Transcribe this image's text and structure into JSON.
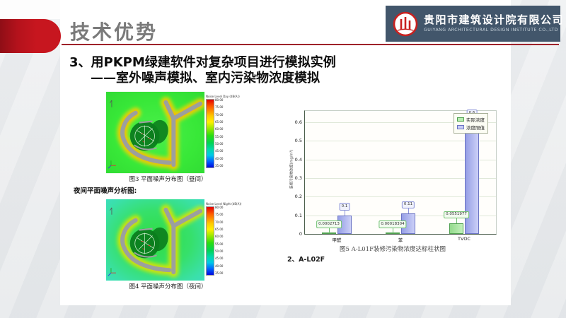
{
  "slide": {
    "page_title": "技术优势",
    "heading_line1": "3、用PKPM绿建软件对复杂项目进行模拟实例",
    "heading_line2": "——室外噪声模拟、室内污染物浓度模拟",
    "accent_red": "#c7161f",
    "title_gray": "#7a7a7a"
  },
  "logo": {
    "company_cn": "贵阳市建筑设计院有限公司",
    "company_en": "GUIYANG ARCHITECTURAL DESIGN INSTITUTE CO.,LTD"
  },
  "noise_section": {
    "day_map": {
      "legend_title": "Noise Level Day (dB(A))",
      "caption": "图3 平面噪声分布图（昼间）"
    },
    "night_heading": "夜间平面噪声分析图:",
    "night_map": {
      "legend_title": "Noise Level Night (dB(A))",
      "caption": "图4 平面噪声分布图（夜间）"
    },
    "legend_ticks": [
      "80.00",
      "75.00",
      "70.00",
      "65.00",
      "60.00",
      "55.00",
      "50.00",
      "45.00",
      "40.00",
      "35.00"
    ]
  },
  "chart_data": {
    "type": "bar",
    "categories": [
      "甲醛",
      "苯",
      "TVOC"
    ],
    "series": [
      {
        "name": "实际浓度",
        "values": [
          0.0002713,
          0.00018304,
          0.0551977
        ],
        "labels": [
          "0.0002713",
          "0.00018304",
          "0.0551977"
        ],
        "fill": "#b9ecb2",
        "border": "#4ea04e"
      },
      {
        "name": "浓度限值",
        "values": [
          0.1,
          0.11,
          0.6
        ],
        "labels": [
          "0.1",
          "0.11",
          "0.6"
        ],
        "fill": "#c7ccf5",
        "border": "#6b74c4"
      }
    ],
    "ylabel": "装修污染物浓度(mg/m³)",
    "ylim": [
      0,
      0.66
    ],
    "yticks": [
      0,
      0.1,
      0.2,
      0.3,
      0.4,
      0.5,
      0.6
    ],
    "grid": true,
    "legend_position": "top-right",
    "caption": "图5 A-L01F装修污染物浓度达标柱状图"
  },
  "footer": {
    "next_item": "2、A-L02F"
  }
}
